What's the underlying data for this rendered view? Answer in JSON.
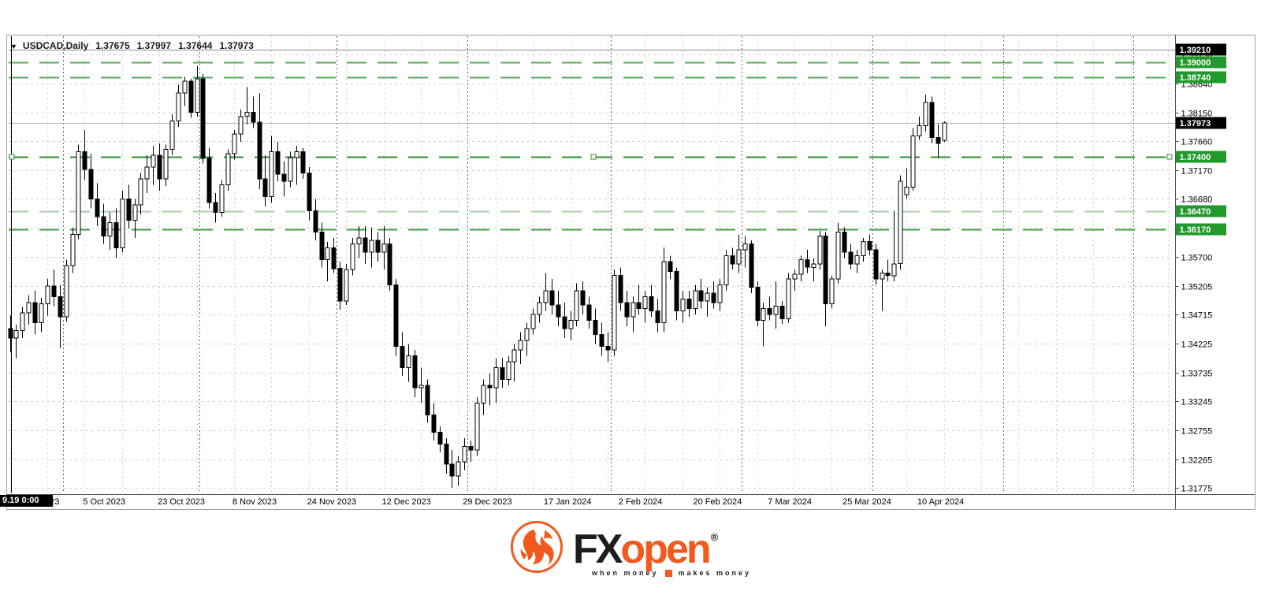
{
  "window": {
    "symbol_period": "USDCAD,Daily",
    "open": "1.37675",
    "high": "1.37997",
    "low": "1.37644",
    "close": "1.37973",
    "collapse_arrow": "▼"
  },
  "chart_data": {
    "type": "candlestick",
    "symbol": "USDCAD",
    "timeframe": "Daily",
    "ylim": [
      1.317,
      1.3932
    ],
    "price_axis": {
      "ticks": [
        "1.39130",
        "1.38640",
        "1.38150",
        "1.37660",
        "1.37170",
        "1.36680",
        "1.36190",
        "1.35700",
        "1.35205",
        "1.34715",
        "1.34225",
        "1.33735",
        "1.33245",
        "1.32755",
        "1.32265",
        "1.31775"
      ]
    },
    "hlines": [
      {
        "price": 1.3921,
        "label": "1.39210",
        "line": "solid",
        "color": "#8a8a8a",
        "label_bg": "#000000"
      },
      {
        "price": 1.39,
        "label": "1.39000",
        "line": "dashed",
        "color": "#5aa85c",
        "label_bg": "#229a2b"
      },
      {
        "price": 1.3874,
        "label": "1.38740",
        "line": "dashed",
        "color": "#5aa85c",
        "label_bg": "#229a2b"
      },
      {
        "price": 1.37973,
        "label": "1.37973",
        "line": "solid",
        "color": "#b4b4b4",
        "label_bg": "#000000"
      },
      {
        "price": 1.374,
        "label": "1.37400",
        "line": "dashed",
        "color": "#2f8f2f",
        "label_bg": "#229a2b",
        "handles": true
      },
      {
        "price": 1.3647,
        "label": "1.36470",
        "line": "dashed",
        "color": "#a8cfa8",
        "label_bg": "#229a2b"
      },
      {
        "price": 1.3617,
        "label": "1.36170",
        "line": "dashed",
        "color": "#3fa040",
        "label_bg": "#229a2b"
      }
    ],
    "vline": {
      "bar": 0,
      "label": "9.19 0:00"
    },
    "time_axis": {
      "labels": [
        {
          "text": "19 Sep 2023",
          "bar": 0
        },
        {
          "text": "5 Oct 2023",
          "bar": 12
        },
        {
          "text": "23 Oct 2023",
          "bar": 24
        },
        {
          "text": "8 Nov 2023",
          "bar": 36
        },
        {
          "text": "24 Nov 2023",
          "bar": 48
        },
        {
          "text": "12 Dec 2023",
          "bar": 60
        },
        {
          "text": "29 Dec 2023",
          "bar": 73
        },
        {
          "text": "17 Jan 2024",
          "bar": 86
        },
        {
          "text": "2 Feb 2024",
          "bar": 98
        },
        {
          "text": "20 Feb 2024",
          "bar": 110
        },
        {
          "text": "7 Mar 2024",
          "bar": 122
        },
        {
          "text": "25 Mar 2024",
          "bar": 134
        },
        {
          "text": "10 Apr 2024",
          "bar": 146
        }
      ]
    },
    "month_start_bars": [
      9,
      31,
      53,
      74,
      97,
      118,
      139,
      160,
      181
    ],
    "bars": [
      [
        1.3448,
        1.347,
        1.3408,
        1.3432
      ],
      [
        1.3432,
        1.3455,
        1.3398,
        1.3445
      ],
      [
        1.3445,
        1.3485,
        1.3432,
        1.3475
      ],
      [
        1.3475,
        1.3505,
        1.3455,
        1.3492
      ],
      [
        1.3492,
        1.3512,
        1.3438,
        1.3458
      ],
      [
        1.3458,
        1.35,
        1.3442,
        1.349
      ],
      [
        1.349,
        1.3532,
        1.347,
        1.352
      ],
      [
        1.352,
        1.3548,
        1.3486,
        1.3502
      ],
      [
        1.3502,
        1.3522,
        1.3415,
        1.3468
      ],
      [
        1.3468,
        1.3565,
        1.346,
        1.3555
      ],
      [
        1.3555,
        1.362,
        1.3542,
        1.3608
      ],
      [
        1.3608,
        1.376,
        1.36,
        1.3748
      ],
      [
        1.3748,
        1.3785,
        1.37,
        1.3718
      ],
      [
        1.3718,
        1.3745,
        1.3652,
        1.3668
      ],
      [
        1.3668,
        1.3695,
        1.3622,
        1.3638
      ],
      [
        1.3638,
        1.366,
        1.3592,
        1.3605
      ],
      [
        1.3605,
        1.3645,
        1.3582,
        1.3628
      ],
      [
        1.3628,
        1.3652,
        1.3568,
        1.3585
      ],
      [
        1.3585,
        1.3682,
        1.3578,
        1.3668
      ],
      [
        1.3668,
        1.3692,
        1.3618,
        1.3632
      ],
      [
        1.3632,
        1.3668,
        1.3602,
        1.3658
      ],
      [
        1.3658,
        1.3712,
        1.3642,
        1.3702
      ],
      [
        1.3702,
        1.3742,
        1.3678,
        1.3722
      ],
      [
        1.3722,
        1.3758,
        1.3692,
        1.3742
      ],
      [
        1.3742,
        1.3762,
        1.3682,
        1.3702
      ],
      [
        1.3702,
        1.376,
        1.369,
        1.3752
      ],
      [
        1.3752,
        1.3812,
        1.3742,
        1.38
      ],
      [
        1.38,
        1.3862,
        1.379,
        1.3848
      ],
      [
        1.3848,
        1.3875,
        1.3826,
        1.3868
      ],
      [
        1.3868,
        1.3872,
        1.3806,
        1.3815
      ],
      [
        1.3815,
        1.3893,
        1.3808,
        1.3872
      ],
      [
        1.3872,
        1.388,
        1.3728,
        1.3737
      ],
      [
        1.3737,
        1.3755,
        1.3652,
        1.3662
      ],
      [
        1.3662,
        1.3678,
        1.3628,
        1.3645
      ],
      [
        1.3645,
        1.37,
        1.3638,
        1.3692
      ],
      [
        1.3692,
        1.3752,
        1.3682,
        1.3745
      ],
      [
        1.3745,
        1.3785,
        1.3735,
        1.3778
      ],
      [
        1.3778,
        1.382,
        1.3765,
        1.3808
      ],
      [
        1.3808,
        1.3858,
        1.3795,
        1.3815
      ],
      [
        1.3815,
        1.3842,
        1.3788,
        1.3798
      ],
      [
        1.3798,
        1.3848,
        1.3685,
        1.3702
      ],
      [
        1.3702,
        1.3742,
        1.3655,
        1.3672
      ],
      [
        1.3672,
        1.3775,
        1.3662,
        1.3748
      ],
      [
        1.3748,
        1.3765,
        1.3698,
        1.371
      ],
      [
        1.371,
        1.3732,
        1.3672,
        1.3698
      ],
      [
        1.3698,
        1.3748,
        1.3688,
        1.3738
      ],
      [
        1.3738,
        1.3758,
        1.3692,
        1.3748
      ],
      [
        1.3748,
        1.3755,
        1.3702,
        1.3712
      ],
      [
        1.3712,
        1.3722,
        1.3632,
        1.3648
      ],
      [
        1.3648,
        1.3668,
        1.3598,
        1.3612
      ],
      [
        1.3612,
        1.3628,
        1.3552,
        1.3565
      ],
      [
        1.3565,
        1.3595,
        1.3528,
        1.3585
      ],
      [
        1.3585,
        1.3602,
        1.3542,
        1.355
      ],
      [
        1.355,
        1.3562,
        1.348,
        1.3495
      ],
      [
        1.3495,
        1.3558,
        1.3488,
        1.3548
      ],
      [
        1.3548,
        1.3602,
        1.3538,
        1.3592
      ],
      [
        1.3592,
        1.3622,
        1.3568,
        1.3602
      ],
      [
        1.3602,
        1.3622,
        1.3558,
        1.3578
      ],
      [
        1.3578,
        1.362,
        1.3552,
        1.3598
      ],
      [
        1.3598,
        1.3612,
        1.3562,
        1.3578
      ],
      [
        1.3578,
        1.3622,
        1.3548,
        1.3592
      ],
      [
        1.3592,
        1.3602,
        1.3512,
        1.3522
      ],
      [
        1.3522,
        1.3532,
        1.3402,
        1.3418
      ],
      [
        1.3418,
        1.3442,
        1.3368,
        1.3382
      ],
      [
        1.3382,
        1.3422,
        1.3358,
        1.3402
      ],
      [
        1.3402,
        1.3412,
        1.3332,
        1.3348
      ],
      [
        1.3348,
        1.3382,
        1.3322,
        1.3352
      ],
      [
        1.3352,
        1.3362,
        1.3288,
        1.3302
      ],
      [
        1.3302,
        1.3322,
        1.3258,
        1.3272
      ],
      [
        1.3272,
        1.3282,
        1.3238,
        1.3252
      ],
      [
        1.3252,
        1.3262,
        1.3202,
        1.3218
      ],
      [
        1.3218,
        1.3242,
        1.3178,
        1.3198
      ],
      [
        1.3198,
        1.3232,
        1.3182,
        1.3222
      ],
      [
        1.3222,
        1.3262,
        1.3208,
        1.3248
      ],
      [
        1.3248,
        1.3258,
        1.3222,
        1.3242
      ],
      [
        1.3242,
        1.3332,
        1.3232,
        1.3322
      ],
      [
        1.3322,
        1.3362,
        1.3302,
        1.3352
      ],
      [
        1.3352,
        1.3372,
        1.3318,
        1.3348
      ],
      [
        1.3348,
        1.3398,
        1.3322,
        1.3382
      ],
      [
        1.3382,
        1.3398,
        1.3348,
        1.3362
      ],
      [
        1.3362,
        1.3402,
        1.3352,
        1.3392
      ],
      [
        1.3392,
        1.3422,
        1.3358,
        1.3412
      ],
      [
        1.3412,
        1.3442,
        1.3388,
        1.3428
      ],
      [
        1.3428,
        1.3458,
        1.3402,
        1.3448
      ],
      [
        1.3448,
        1.3482,
        1.3438,
        1.3472
      ],
      [
        1.3472,
        1.3502,
        1.3458,
        1.3492
      ],
      [
        1.3492,
        1.3542,
        1.3478,
        1.3512
      ],
      [
        1.3512,
        1.3532,
        1.3472,
        1.3488
      ],
      [
        1.3488,
        1.3512,
        1.3452,
        1.3468
      ],
      [
        1.3468,
        1.3492,
        1.3432,
        1.3448
      ],
      [
        1.3448,
        1.3478,
        1.3428,
        1.3462
      ],
      [
        1.3462,
        1.3525,
        1.3452,
        1.3512
      ],
      [
        1.3512,
        1.3528,
        1.3472,
        1.3488
      ],
      [
        1.3488,
        1.3502,
        1.3448,
        1.3462
      ],
      [
        1.3462,
        1.3482,
        1.3422,
        1.3438
      ],
      [
        1.3438,
        1.3458,
        1.3402,
        1.3418
      ],
      [
        1.3418,
        1.3442,
        1.3392,
        1.3412
      ],
      [
        1.3412,
        1.3548,
        1.3402,
        1.3538
      ],
      [
        1.3538,
        1.3552,
        1.3478,
        1.3492
      ],
      [
        1.3492,
        1.3512,
        1.3452,
        1.3468
      ],
      [
        1.3468,
        1.3502,
        1.3442,
        1.3492
      ],
      [
        1.3492,
        1.3522,
        1.3472,
        1.3482
      ],
      [
        1.3482,
        1.3512,
        1.3458,
        1.3502
      ],
      [
        1.3502,
        1.3522,
        1.3468,
        1.3478
      ],
      [
        1.3478,
        1.3498,
        1.3442,
        1.3458
      ],
      [
        1.3458,
        1.3586,
        1.3442,
        1.3562
      ],
      [
        1.3562,
        1.3572,
        1.3532,
        1.3545
      ],
      [
        1.3545,
        1.3552,
        1.3462,
        1.3478
      ],
      [
        1.3478,
        1.3512,
        1.3458,
        1.3498
      ],
      [
        1.3498,
        1.3512,
        1.3468,
        1.3482
      ],
      [
        1.3482,
        1.3522,
        1.3472,
        1.3512
      ],
      [
        1.3512,
        1.3532,
        1.3482,
        1.3495
      ],
      [
        1.3495,
        1.3518,
        1.3468,
        1.3508
      ],
      [
        1.3508,
        1.3528,
        1.3482,
        1.3492
      ],
      [
        1.3492,
        1.3532,
        1.3478,
        1.3522
      ],
      [
        1.3522,
        1.3582,
        1.3512,
        1.3572
      ],
      [
        1.3572,
        1.3585,
        1.3548,
        1.3558
      ],
      [
        1.3558,
        1.3608,
        1.3542,
        1.3582
      ],
      [
        1.3582,
        1.3605,
        1.3552,
        1.3592
      ],
      [
        1.3592,
        1.3598,
        1.3508,
        1.3518
      ],
      [
        1.3518,
        1.3528,
        1.3452,
        1.3462
      ],
      [
        1.3462,
        1.3492,
        1.3418,
        1.3482
      ],
      [
        1.3482,
        1.3502,
        1.3462,
        1.3472
      ],
      [
        1.3472,
        1.3528,
        1.3448,
        1.3486
      ],
      [
        1.3486,
        1.3495,
        1.3456,
        1.3465
      ],
      [
        1.3465,
        1.3542,
        1.3458,
        1.3532
      ],
      [
        1.3532,
        1.3548,
        1.3512,
        1.354
      ],
      [
        1.354,
        1.3572,
        1.3528,
        1.3565
      ],
      [
        1.3565,
        1.3582,
        1.3542,
        1.3552
      ],
      [
        1.3552,
        1.3568,
        1.3528,
        1.3558
      ],
      [
        1.3558,
        1.3614,
        1.3548,
        1.3605
      ],
      [
        1.3605,
        1.3612,
        1.3452,
        1.349
      ],
      [
        1.349,
        1.3538,
        1.3482,
        1.3532
      ],
      [
        1.3532,
        1.3627,
        1.3525,
        1.3612
      ],
      [
        1.3612,
        1.362,
        1.3568,
        1.3578
      ],
      [
        1.3578,
        1.3592,
        1.3548,
        1.3558
      ],
      [
        1.3558,
        1.3582,
        1.3542,
        1.3572
      ],
      [
        1.3572,
        1.3602,
        1.3562,
        1.3596
      ],
      [
        1.3596,
        1.3608,
        1.3572,
        1.3582
      ],
      [
        1.3582,
        1.3592,
        1.3522,
        1.3532
      ],
      [
        1.3532,
        1.3548,
        1.3478,
        1.3542
      ],
      [
        1.3542,
        1.3565,
        1.3528,
        1.3538
      ],
      [
        1.3538,
        1.3648,
        1.3528,
        1.3558
      ],
      [
        1.3558,
        1.3708,
        1.3548,
        1.3698
      ],
      [
        1.3675,
        1.372,
        1.3668,
        1.3688
      ],
      [
        1.3688,
        1.3788,
        1.3682,
        1.3775
      ],
      [
        1.3775,
        1.3808,
        1.3768,
        1.3792
      ],
      [
        1.3792,
        1.3845,
        1.3782,
        1.3832
      ],
      [
        1.3832,
        1.3842,
        1.3762,
        1.3772
      ],
      [
        1.3772,
        1.3795,
        1.3738,
        1.3762
      ],
      [
        1.37675,
        1.37997,
        1.37644,
        1.37973
      ]
    ]
  },
  "branding": {
    "logo_fx": "FX",
    "logo_open": "open",
    "registered": "®",
    "tagline_left": "when money",
    "tagline_right": "makes money",
    "orange": "#f1591d"
  }
}
